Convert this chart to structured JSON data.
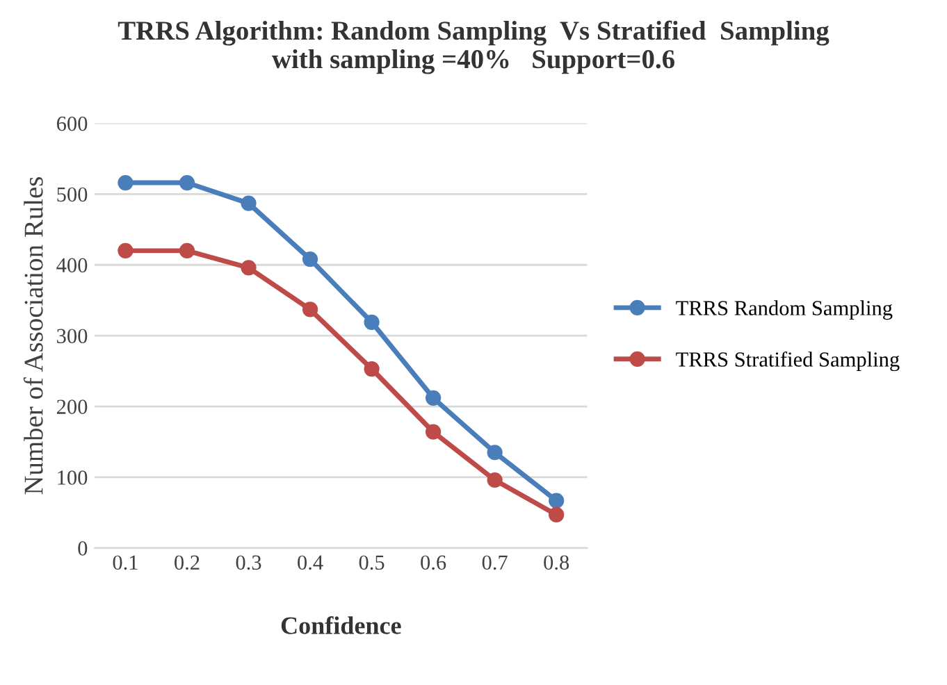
{
  "chart_data": {
    "type": "line",
    "title": "TRRS Algorithm: Random Sampling  Vs Stratified  Sampling\nwith sampling =40%   Support=0.6",
    "xlabel": "Confidence",
    "ylabel": "Number of Association Rules",
    "categories": [
      "0.1",
      "0.2",
      "0.3",
      "0.4",
      "0.5",
      "0.6",
      "0.7",
      "0.8"
    ],
    "series": [
      {
        "name": "TRRS Random Sampling",
        "color": "#4a7ebb",
        "values": [
          516,
          516,
          487,
          408,
          319,
          212,
          135,
          67
        ]
      },
      {
        "name": "TRRS Stratified Sampling",
        "color": "#be4b48",
        "values": [
          420,
          420,
          396,
          337,
          253,
          164,
          96,
          47
        ]
      }
    ],
    "ylim": [
      0,
      600
    ],
    "yticks": [
      0,
      100,
      200,
      300,
      400,
      500,
      600
    ],
    "grid": "y",
    "legend": "right",
    "marker": "circle",
    "line_style": "solid"
  }
}
